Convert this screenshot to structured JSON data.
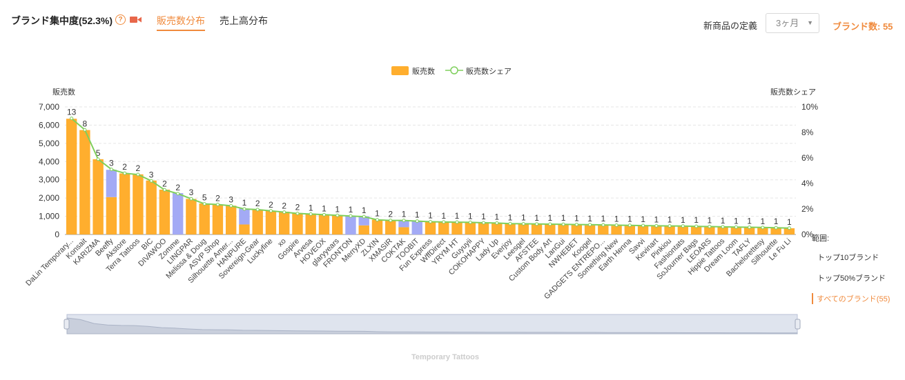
{
  "header": {
    "title": "ブランド集中度(52.3%)",
    "help_icon": "question-circle-icon",
    "video_icon": "video-camera-icon",
    "tabs": [
      {
        "label": "販売数分布",
        "active": true
      },
      {
        "label": "売上高分布",
        "active": false
      }
    ],
    "new_product_definition_label": "新商品の定義",
    "period_select_value": "3ヶ月",
    "brand_count": "ブランド数: 55",
    "accent_color": "#f08a3c"
  },
  "range_panel": {
    "title": "範囲:",
    "options": [
      {
        "label": "トップ10ブランド",
        "active": false
      },
      {
        "label": "トップ50%ブランド",
        "active": false
      },
      {
        "label": "すべてのブランド(55)",
        "active": true
      }
    ]
  },
  "zoom_caption": "Temporary Tattoos",
  "chart_data": {
    "type": "bar",
    "legend": [
      {
        "name": "販売数",
        "color": "#ffae2e",
        "kind": "bar"
      },
      {
        "name": "販売数シェア",
        "color": "#7fcf5c",
        "kind": "line"
      }
    ],
    "legend_position": "top-center",
    "ylabel_left": "販売数",
    "ylabel_right": "販売数シェア",
    "ylim_left": [
      0,
      7000
    ],
    "yticks_left": [
      "0",
      "1,000",
      "2,000",
      "3,000",
      "4,000",
      "5,000",
      "6,000",
      "7,000"
    ],
    "ylim_right": [
      0,
      10
    ],
    "yticks_right": [
      "0%",
      "2%",
      "4%",
      "6%",
      "8%",
      "10%"
    ],
    "grid": true,
    "categories": [
      "DaLin Temporary...",
      "Konsait",
      "KARIZMA",
      "Beeffy",
      "Akstore",
      "Terra Tattoos",
      "BIC",
      "DIVAWOO",
      "Zomme",
      "LINGPAR",
      "Melissa & Doug",
      "ASVP Shop",
      "Silhouette Amer...",
      "HANPURE",
      "Sovereign-Gear",
      "Luckyfine",
      "xo",
      "Gospire",
      "Arvesa",
      "HOVEOX",
      "glaryyears",
      "FRONTON",
      "MerryXD",
      "ZLXIN",
      "XMASIR",
      "COKTAK",
      "TOOBIT",
      "Fun Express",
      "WffDirect",
      "YRYM HT",
      "Guyuyii",
      "COKOHAPPY",
      "Lady Up",
      "Everjoy",
      "Leesgel",
      "AFSTEE",
      "Custom Body Art",
      "LanGui",
      "NWHEBET",
      "Koogel",
      "GADGETS ENTREPO...",
      "Something New",
      "Earth Henna",
      "Savvi",
      "Kevinart",
      "Pinkiou",
      "Fashiontats",
      "SoJourner Bags",
      "LEOARS",
      "Hippie Tattoos",
      "Dream Loom",
      "TAFLY",
      "Bachelorettesy",
      "Silhouette",
      "Le Fu Li"
    ],
    "series": [
      {
        "name": "販売数",
        "values": [
          6350,
          5730,
          4130,
          2050,
          3350,
          3300,
          2960,
          2460,
          0,
          1950,
          1700,
          1650,
          1580,
          550,
          1380,
          1300,
          1250,
          1180,
          1150,
          1100,
          1050,
          0,
          500,
          820,
          780,
          400,
          0,
          700,
          690,
          680,
          670,
          650,
          640,
          600,
          590,
          580,
          570,
          560,
          550,
          500,
          490,
          480,
          470,
          460,
          450,
          440,
          430,
          420,
          410,
          400,
          390,
          380,
          370,
          360,
          340
        ]
      },
      {
        "name": "新商品",
        "values": [
          0,
          0,
          0,
          1500,
          0,
          0,
          0,
          0,
          2270,
          0,
          0,
          0,
          0,
          870,
          0,
          0,
          0,
          0,
          0,
          0,
          0,
          1020,
          500,
          0,
          0,
          360,
          730,
          0,
          0,
          0,
          0,
          0,
          0,
          0,
          0,
          0,
          0,
          0,
          0,
          60,
          0,
          0,
          0,
          0,
          0,
          0,
          0,
          0,
          0,
          0,
          0,
          0,
          0,
          0,
          0
        ]
      },
      {
        "name": "販売数シェア",
        "values": [
          9.1,
          8.2,
          5.9,
          5.1,
          4.8,
          4.7,
          4.2,
          3.5,
          3.2,
          2.8,
          2.4,
          2.35,
          2.25,
          2.0,
          1.95,
          1.85,
          1.75,
          1.65,
          1.6,
          1.55,
          1.5,
          1.45,
          1.4,
          1.15,
          1.1,
          1.1,
          1.05,
          1.0,
          0.98,
          0.97,
          0.95,
          0.92,
          0.9,
          0.85,
          0.84,
          0.82,
          0.81,
          0.8,
          0.78,
          0.77,
          0.75,
          0.73,
          0.72,
          0.7,
          0.68,
          0.67,
          0.66,
          0.64,
          0.62,
          0.6,
          0.58,
          0.57,
          0.55,
          0.53,
          0.5
        ]
      }
    ],
    "bar_labels": [
      "13",
      "8",
      "5",
      "3",
      "2",
      "2",
      "3",
      "2",
      "2",
      "3",
      "5",
      "2",
      "3",
      "1",
      "2",
      "2",
      "2",
      "2",
      "1",
      "1",
      "1",
      "1",
      "1",
      "1",
      "2",
      "1",
      "1",
      "1",
      "1",
      "1",
      "1",
      "1",
      "1",
      "1",
      "1",
      "1",
      "1",
      "1",
      "1",
      "1",
      "1",
      "1",
      "1",
      "1",
      "1",
      "1",
      "1",
      "1",
      "1",
      "1",
      "1",
      "1",
      "1",
      "1",
      "1"
    ],
    "bar_color": "#ffae2e",
    "new_product_color": "#a3aaf5",
    "line_color": "#7fcf5c"
  }
}
